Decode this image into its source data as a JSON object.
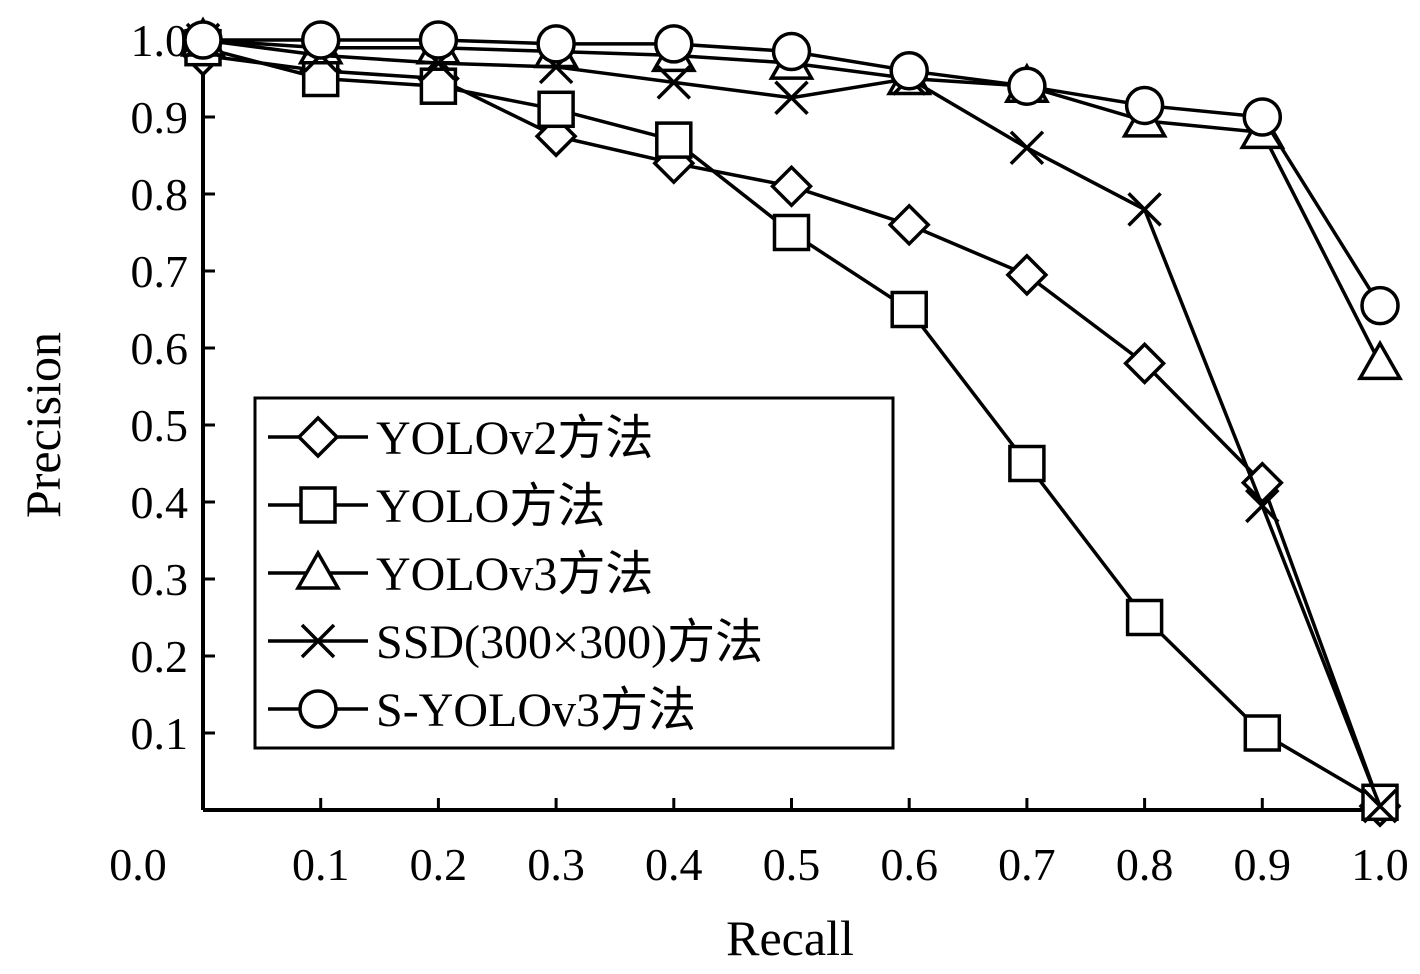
{
  "chart_data": {
    "type": "line",
    "title": "",
    "xlabel": "Recall",
    "ylabel": "Precision",
    "xlim": [
      0.0,
      1.0
    ],
    "ylim": [
      0.0,
      1.0
    ],
    "x_ticks": [
      "0.0",
      "0.1",
      "0.2",
      "0.3",
      "0.4",
      "0.5",
      "0.6",
      "0.7",
      "0.8",
      "0.9",
      "1.0"
    ],
    "y_ticks": [
      "0.1",
      "0.2",
      "0.3",
      "0.4",
      "0.5",
      "0.6",
      "0.7",
      "0.8",
      "0.9",
      "1.0"
    ],
    "grid": false,
    "legend_position": "lower-left",
    "x": [
      0.0,
      0.1,
      0.2,
      0.3,
      0.4,
      0.5,
      0.6,
      0.7,
      0.8,
      0.9,
      1.0
    ],
    "series": [
      {
        "name": "YOLOv2方法",
        "marker": "diamond",
        "values": [
          0.98,
          0.96,
          0.95,
          0.875,
          0.84,
          0.81,
          0.76,
          0.695,
          0.58,
          0.425,
          0.005
        ]
      },
      {
        "name": "YOLO方法",
        "marker": "square",
        "values": [
          0.99,
          0.95,
          0.94,
          0.91,
          0.87,
          0.75,
          0.65,
          0.45,
          0.25,
          0.1,
          0.01
        ]
      },
      {
        "name": "YOLOv3方法",
        "marker": "triangle",
        "values": [
          1.0,
          0.99,
          0.99,
          0.985,
          0.98,
          0.97,
          0.95,
          0.94,
          0.895,
          0.88,
          0.58
        ]
      },
      {
        "name": "SSD(300×300)方法",
        "marker": "x",
        "values": [
          1.0,
          0.98,
          0.97,
          0.965,
          0.945,
          0.925,
          0.95,
          0.86,
          0.78,
          0.395,
          0.005
        ]
      },
      {
        "name": "S-YOLOv3方法",
        "marker": "circle",
        "values": [
          1.0,
          1.0,
          1.0,
          0.995,
          0.995,
          0.985,
          0.96,
          0.94,
          0.915,
          0.9,
          0.655
        ]
      }
    ]
  },
  "colors": {
    "line": "#000000",
    "background": "#ffffff"
  }
}
